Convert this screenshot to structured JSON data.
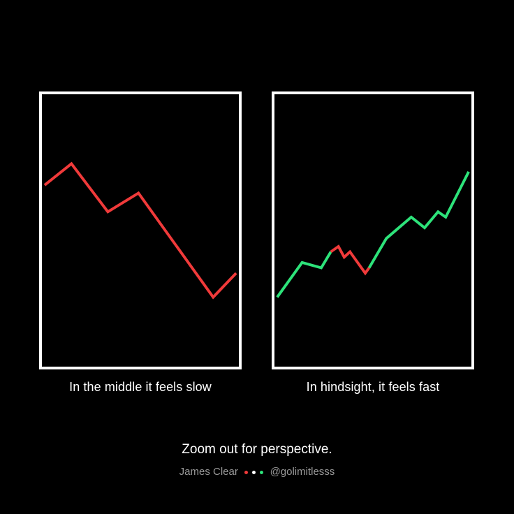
{
  "colors": {
    "background": "#000000",
    "frame": "#ffffff",
    "down": "#f03a3a",
    "up": "#2de37a",
    "dot_white": "#ffffff"
  },
  "chart_data": [
    {
      "type": "line",
      "caption": "In the middle it feels slow",
      "xlim": [
        0,
        100
      ],
      "ylim": [
        0,
        100
      ],
      "grid": false,
      "series": [
        {
          "color": "#f03a3a",
          "x": [
            0,
            14,
            33,
            49,
            88,
            100
          ],
          "y": [
            67,
            75,
            57,
            64,
            25,
            34
          ]
        }
      ]
    },
    {
      "type": "line",
      "caption": "In hindsight, it feels fast",
      "xlim": [
        0,
        100
      ],
      "ylim": [
        0,
        100
      ],
      "grid": false,
      "series": [
        {
          "color": "#2de37a",
          "x": [
            0,
            13,
            23,
            28
          ],
          "y": [
            25,
            38,
            36,
            42
          ]
        },
        {
          "color": "#f03a3a",
          "x": [
            28,
            32,
            35,
            38,
            46,
            48
          ],
          "y": [
            42,
            44,
            40,
            42,
            34,
            36
          ]
        },
        {
          "color": "#2de37a",
          "x": [
            48,
            57,
            70,
            77,
            84,
            88,
            100
          ],
          "y": [
            36,
            47,
            55,
            51,
            57,
            55,
            72
          ]
        }
      ]
    }
  ],
  "footer": {
    "headline": "Zoom out for perspective.",
    "author": "James Clear",
    "handle": "@golimitlesss"
  }
}
